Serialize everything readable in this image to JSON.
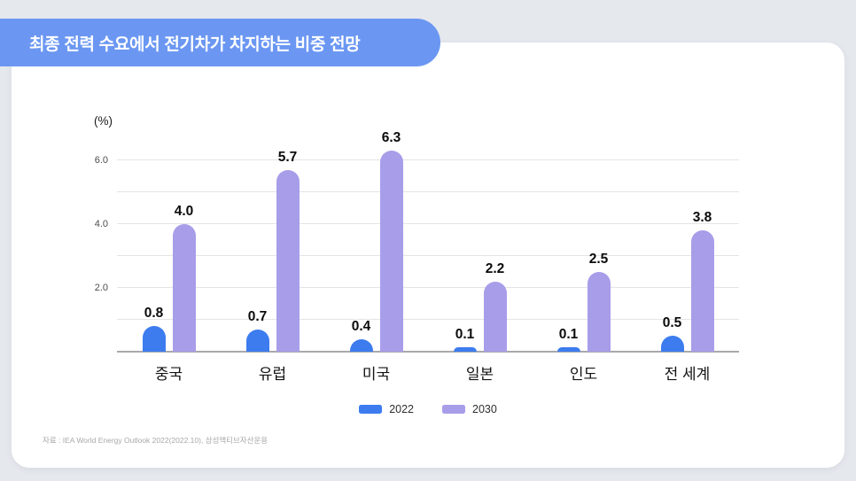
{
  "title": "최종 전력 수요에서 전기차가 차지하는 비중 전망",
  "source_text": "자료 : IEA World Energy Outlook 2022(2022.10), 삼성액티브자산운용",
  "colors": {
    "background": "#E5E8ED",
    "card": "#FFFFFF",
    "banner": "#6B97F2",
    "banner_text": "#FFFFFF",
    "series_2022": "#3C7CEF",
    "series_2030": "#A89DE9",
    "gridline": "#E4E4E6",
    "baseline": "#A9A9AD",
    "value_text": "#0B0B0B",
    "tick_text": "#4C4C4C",
    "source_text": "#A8A8A8"
  },
  "chart_data": {
    "type": "bar",
    "title": "최종 전력 수요에서 전기차가 차지하는 비중 전망",
    "unit_label": "(%)",
    "xlabel": "",
    "ylabel": "%",
    "categories": [
      "중국",
      "유럽",
      "미국",
      "일본",
      "인도",
      "전 세계"
    ],
    "series": [
      {
        "name": "2022",
        "color": "#3C7CEF",
        "values": [
          0.8,
          0.7,
          0.4,
          0.1,
          0.1,
          0.5
        ]
      },
      {
        "name": "2030",
        "color": "#A89DE9",
        "values": [
          4.0,
          5.7,
          6.3,
          2.2,
          2.5,
          3.8
        ]
      }
    ],
    "value_labels": [
      [
        "0.8",
        "0.7",
        "0.4",
        "0.1",
        "0.1",
        "0.5"
      ],
      [
        "4.0",
        "5.7",
        "6.3",
        "2.2",
        "2.5",
        "3.8"
      ]
    ],
    "ylim": [
      0,
      6.5
    ],
    "gridlines": [
      1,
      2,
      3,
      4,
      5,
      6
    ],
    "yticks": [
      {
        "value": 2,
        "label": "2.0"
      },
      {
        "value": 4,
        "label": "4.0"
      },
      {
        "value": 6,
        "label": "6.0"
      }
    ],
    "grid": true,
    "legend": [
      "2022",
      "2030"
    ],
    "legend_position": "bottom-center"
  }
}
